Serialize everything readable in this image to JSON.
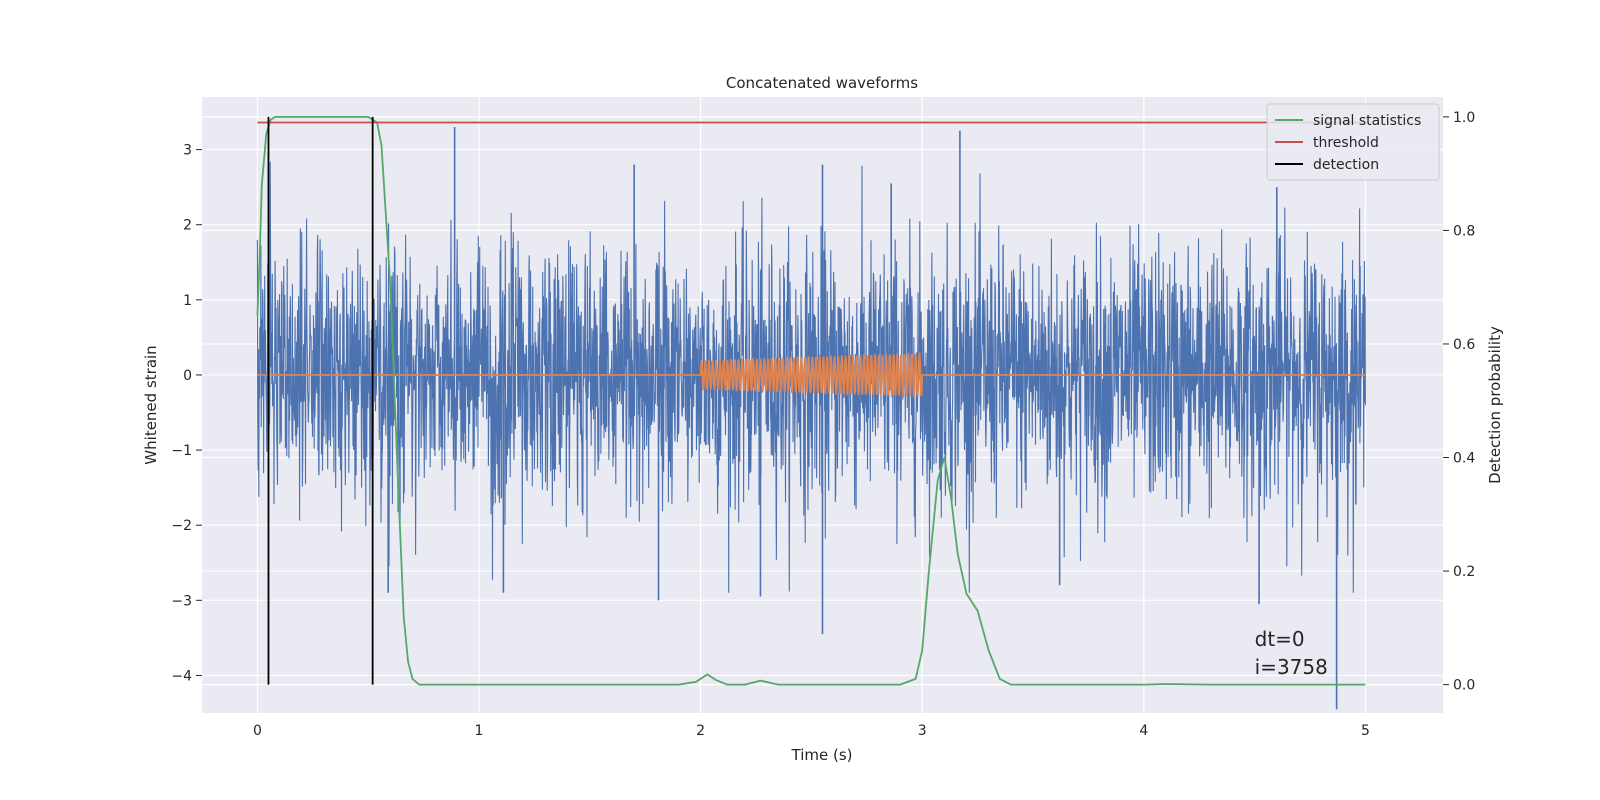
{
  "chart_data": {
    "type": "line",
    "title": "Concatenated waveforms",
    "xlabel": "Time (s)",
    "ylabel": "Whitened strain",
    "y2label": "Detection probability",
    "xlim": [
      -0.25,
      5.35
    ],
    "ylim": [
      -4.5,
      3.7
    ],
    "y2lim": [
      -0.05,
      1.035
    ],
    "xticks": [
      0,
      1,
      2,
      3,
      4,
      5
    ],
    "yticks": [
      -4,
      -3,
      -2,
      -1,
      0,
      1,
      2,
      3
    ],
    "y2ticks": [
      0.0,
      0.2,
      0.4,
      0.6,
      0.8,
      1.0
    ],
    "y2tick_labels": [
      "0.0",
      "0.2",
      "0.4",
      "0.6",
      "0.8",
      "1.0"
    ],
    "grid": true,
    "legend_position": "top-right",
    "annotations": [
      "dt=0",
      "i=3758"
    ],
    "series": [
      {
        "name": "",
        "axis": "left",
        "color": "#4c72b0",
        "style": "noise",
        "x_range": [
          0,
          5
        ],
        "envelope": 1.6,
        "spikes": [
          {
            "x": 0.89,
            "y": 3.3
          },
          {
            "x": 2.55,
            "y": 2.8
          },
          {
            "x": 2.55,
            "y": -3.45
          },
          {
            "x": 3.17,
            "y": 3.25
          },
          {
            "x": 4.87,
            "y": -4.45
          },
          {
            "x": 4.52,
            "y": -3.05
          },
          {
            "x": 1.81,
            "y": -3.0
          },
          {
            "x": 2.27,
            "y": -2.95
          },
          {
            "x": 1.11,
            "y": -2.9
          },
          {
            "x": 3.62,
            "y": -2.8
          },
          {
            "x": 0.59,
            "y": -2.9
          },
          {
            "x": 2.86,
            "y": 2.55
          },
          {
            "x": 4.6,
            "y": 2.5
          },
          {
            "x": 1.7,
            "y": 2.8
          }
        ]
      },
      {
        "name": "",
        "axis": "left",
        "color": "#dd8452",
        "style": "chirp",
        "x": [
          0,
          2,
          3,
          5
        ],
        "amplitude": [
          0,
          0.2,
          0.3,
          0
        ]
      },
      {
        "name": "signal statistics",
        "axis": "right",
        "color": "#55a868",
        "x": [
          0.0,
          0.01,
          0.02,
          0.04,
          0.06,
          0.08,
          0.1,
          0.3,
          0.5,
          0.54,
          0.56,
          0.6,
          0.63,
          0.66,
          0.68,
          0.7,
          0.73,
          0.8,
          1.0,
          1.9,
          1.98,
          2.03,
          2.07,
          2.12,
          2.2,
          2.27,
          2.35,
          2.5,
          2.9,
          2.97,
          3.0,
          3.03,
          3.07,
          3.1,
          3.13,
          3.16,
          3.2,
          3.25,
          3.3,
          3.35,
          3.4,
          3.5,
          4.0,
          4.1,
          4.3,
          5.0
        ],
        "y": [
          0.65,
          0.75,
          0.88,
          0.97,
          0.995,
          1.0,
          1.0,
          1.0,
          1.0,
          0.99,
          0.95,
          0.7,
          0.4,
          0.12,
          0.04,
          0.01,
          0.0,
          0.0,
          0.0,
          0.0,
          0.005,
          0.018,
          0.008,
          0.0,
          0.0,
          0.007,
          0.0,
          0.0,
          0.0,
          0.01,
          0.06,
          0.2,
          0.36,
          0.4,
          0.33,
          0.23,
          0.16,
          0.13,
          0.06,
          0.01,
          0.0,
          0.0,
          0.0,
          0.001,
          0.0,
          0.0
        ]
      },
      {
        "name": "threshold",
        "axis": "right",
        "color": "#c44e52",
        "x": [
          0,
          5
        ],
        "y": [
          0.99,
          0.99
        ]
      },
      {
        "name": "detection",
        "axis": "right",
        "color": "#000000",
        "style": "vlines",
        "x": [
          0.05,
          0.52
        ],
        "y": [
          0.0,
          1.0
        ]
      }
    ]
  }
}
